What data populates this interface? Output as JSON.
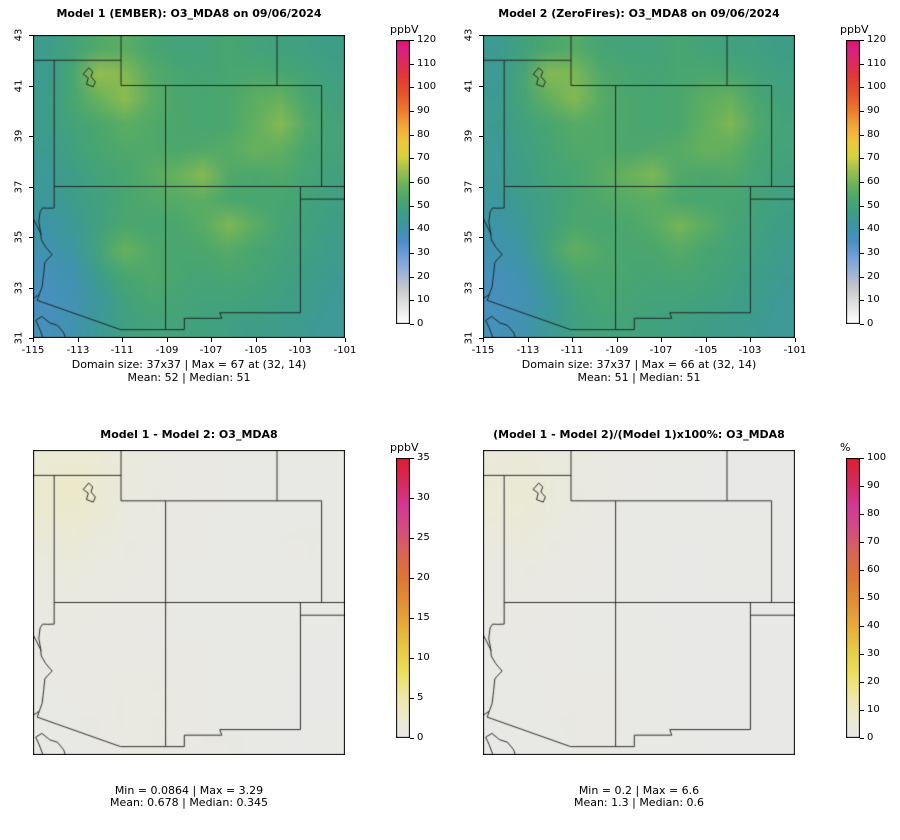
{
  "palettes": {
    "ozone": {
      "positions": [
        0,
        0.07,
        0.13,
        0.18,
        0.24,
        0.29,
        0.34,
        0.39,
        0.44,
        0.49,
        0.54,
        0.59,
        0.64,
        0.7,
        0.75,
        0.81,
        0.87,
        0.92,
        0.97,
        1.0
      ],
      "colors": [
        "#ffffff",
        "#e0e0e0",
        "#c2c6cc",
        "#9db4d8",
        "#6f9fd8",
        "#4b8fc4",
        "#3d95a8",
        "#3d9e88",
        "#4aa76e",
        "#6bb25a",
        "#9cbf4e",
        "#d6d23e",
        "#f0c83c",
        "#f2a636",
        "#ec7d2b",
        "#e5562b",
        "#e13a34",
        "#de2a5e",
        "#dc1f86",
        "#e0115f"
      ]
    },
    "warm": {
      "positions": [
        0,
        0.06,
        0.14,
        0.23,
        0.31,
        0.4,
        0.49,
        0.57,
        0.66,
        0.74,
        0.83,
        0.91,
        1.0
      ],
      "colors": [
        "#e8e8e8",
        "#ebead3",
        "#efe8ad",
        "#ece05e",
        "#e8cc45",
        "#e5ad3a",
        "#e08f31",
        "#dd7733",
        "#d96555",
        "#d44f80",
        "#d23a96",
        "#d62a62",
        "#dd1f30"
      ]
    }
  },
  "chart_data": [
    {
      "id": "model1",
      "type": "heatmap",
      "title": "Model 1 (EMBER): O3_MDA8 on 09/06/2024",
      "caption1": "Domain size: 37x37 | Max = 67 at (32, 14)",
      "caption2": "Mean: 52 | Median: 51",
      "stats": {
        "domain_size": "37x37",
        "max": 67,
        "max_at": "(32, 14)",
        "mean": 52,
        "median": 51
      },
      "lon_range": [
        -115,
        -101
      ],
      "lat_range": [
        31,
        43
      ],
      "xlabel_ticks": [
        -115,
        -113,
        -111,
        -109,
        -107,
        -105,
        -103,
        -101
      ],
      "ylabel_ticks": [
        31,
        33,
        35,
        37,
        39,
        41,
        43
      ],
      "show_axis_labels": true,
      "colorbar": {
        "label": "ppbV",
        "min": 0,
        "max": 120,
        "ticks": [
          0,
          10,
          20,
          30,
          40,
          50,
          60,
          70,
          80,
          90,
          100,
          110,
          120
        ],
        "palette": "ozone"
      },
      "lat_order": "north-to-south",
      "grid": [
        [
          46,
          50,
          54,
          56,
          52,
          50,
          50,
          52,
          50,
          49,
          48,
          47
        ],
        [
          45,
          52,
          64,
          62,
          55,
          52,
          51,
          52,
          53,
          52,
          50,
          48
        ],
        [
          46,
          52,
          58,
          63,
          56,
          53,
          52,
          53,
          56,
          58,
          52,
          49
        ],
        [
          46,
          50,
          53,
          56,
          54,
          53,
          52,
          53,
          57,
          62,
          54,
          50
        ],
        [
          45,
          49,
          52,
          54,
          54,
          53,
          54,
          55,
          58,
          57,
          52,
          50
        ],
        [
          44,
          47,
          50,
          52,
          55,
          58,
          62,
          54,
          53,
          54,
          51,
          49
        ],
        [
          43,
          46,
          49,
          52,
          54,
          55,
          56,
          53,
          52,
          52,
          50,
          48
        ],
        [
          41,
          44,
          49,
          53,
          52,
          53,
          55,
          61,
          56,
          51,
          49,
          47
        ],
        [
          39,
          42,
          50,
          58,
          54,
          52,
          53,
          55,
          52,
          50,
          48,
          46
        ],
        [
          37,
          39,
          46,
          52,
          54,
          52,
          51,
          52,
          51,
          49,
          47,
          45
        ],
        [
          36,
          38,
          43,
          49,
          52,
          51,
          50,
          50,
          49,
          48,
          46,
          44
        ],
        [
          37,
          39,
          44,
          48,
          50,
          50,
          49,
          48,
          47,
          46,
          45,
          44
        ]
      ]
    },
    {
      "id": "model2",
      "type": "heatmap",
      "title": "Model 2 (ZeroFires): O3_MDA8 on 09/06/2024",
      "caption1": "Domain size: 37x37 | Max = 66 at (32, 14)",
      "caption2": "Mean: 51 | Median: 51",
      "stats": {
        "domain_size": "37x37",
        "max": 66,
        "max_at": "(32, 14)",
        "mean": 51,
        "median": 51
      },
      "lon_range": [
        -115,
        -101
      ],
      "lat_range": [
        31,
        43
      ],
      "xlabel_ticks": [
        -115,
        -113,
        -111,
        -109,
        -107,
        -105,
        -103,
        -101
      ],
      "ylabel_ticks": [
        31,
        33,
        35,
        37,
        39,
        41,
        43
      ],
      "show_axis_labels": true,
      "colorbar": {
        "label": "ppbV",
        "min": 0,
        "max": 120,
        "ticks": [
          0,
          10,
          20,
          30,
          40,
          50,
          60,
          70,
          80,
          90,
          100,
          110,
          120
        ],
        "palette": "ozone"
      },
      "lat_order": "north-to-south",
      "grid": [
        [
          45,
          49,
          53,
          55,
          51,
          50,
          50,
          52,
          50,
          49,
          48,
          47
        ],
        [
          44,
          51,
          62,
          61,
          54,
          52,
          51,
          52,
          53,
          52,
          50,
          48
        ],
        [
          45,
          51,
          57,
          62,
          55,
          53,
          52,
          53,
          56,
          58,
          52,
          49
        ],
        [
          45,
          49,
          52,
          55,
          54,
          53,
          52,
          53,
          57,
          61,
          54,
          50
        ],
        [
          44,
          48,
          51,
          54,
          54,
          53,
          54,
          55,
          58,
          57,
          52,
          50
        ],
        [
          44,
          47,
          50,
          52,
          55,
          58,
          61,
          54,
          53,
          54,
          51,
          49
        ],
        [
          43,
          46,
          49,
          52,
          54,
          55,
          56,
          53,
          52,
          52,
          50,
          48
        ],
        [
          41,
          44,
          49,
          53,
          52,
          53,
          55,
          60,
          56,
          51,
          49,
          47
        ],
        [
          39,
          42,
          50,
          57,
          54,
          52,
          53,
          55,
          52,
          50,
          48,
          46
        ],
        [
          37,
          39,
          46,
          52,
          53,
          52,
          51,
          52,
          51,
          49,
          47,
          45
        ],
        [
          36,
          38,
          43,
          49,
          52,
          51,
          50,
          50,
          49,
          48,
          46,
          44
        ],
        [
          37,
          39,
          44,
          48,
          50,
          50,
          49,
          48,
          47,
          46,
          45,
          44
        ]
      ]
    },
    {
      "id": "difference",
      "type": "heatmap",
      "title": "Model 1 - Model 2: O3_MDA8",
      "caption1": "Min = 0.0864 | Max = 3.29",
      "caption2": "Mean: 0.678 | Median: 0.345",
      "stats": {
        "min": 0.0864,
        "max": 3.29,
        "mean": 0.678,
        "median": 0.345
      },
      "lon_range": [
        -115,
        -101
      ],
      "lat_range": [
        31,
        43
      ],
      "show_axis_labels": false,
      "colorbar": {
        "label": "ppbV",
        "min": 0,
        "max": 35,
        "ticks": [
          0,
          5,
          10,
          15,
          20,
          25,
          30,
          35
        ],
        "palette": "warm"
      },
      "lat_order": "north-to-south",
      "grid": [
        [
          2.0,
          2.2,
          1.8,
          1.2,
          0.8,
          0.6,
          0.5,
          0.4,
          0.3,
          0.3,
          0.3,
          0.3
        ],
        [
          2.5,
          3.0,
          2.0,
          1.2,
          0.8,
          0.6,
          0.5,
          0.4,
          0.3,
          0.3,
          0.3,
          0.3
        ],
        [
          2.2,
          2.5,
          1.8,
          1.0,
          0.7,
          0.5,
          0.4,
          0.4,
          0.3,
          0.3,
          0.3,
          0.3
        ],
        [
          1.5,
          1.8,
          1.2,
          0.8,
          0.6,
          0.5,
          0.4,
          0.3,
          0.3,
          0.4,
          0.5,
          0.3
        ],
        [
          1.0,
          1.2,
          0.9,
          0.7,
          0.5,
          0.4,
          0.4,
          0.3,
          0.3,
          0.4,
          0.4,
          0.3
        ],
        [
          0.8,
          0.9,
          0.7,
          0.6,
          0.5,
          0.4,
          0.3,
          0.3,
          0.3,
          0.3,
          0.3,
          0.3
        ],
        [
          0.6,
          0.7,
          0.6,
          0.5,
          0.4,
          0.4,
          0.3,
          0.3,
          0.3,
          0.3,
          0.3,
          0.2
        ],
        [
          0.5,
          0.6,
          0.5,
          0.5,
          0.4,
          0.4,
          0.4,
          0.3,
          0.3,
          0.3,
          0.2,
          0.2
        ],
        [
          0.4,
          0.5,
          0.5,
          0.6,
          0.6,
          0.5,
          0.4,
          0.3,
          0.3,
          0.2,
          0.2,
          0.2
        ],
        [
          0.4,
          0.4,
          0.5,
          0.7,
          0.8,
          0.6,
          0.4,
          0.3,
          0.3,
          0.2,
          0.2,
          0.2
        ],
        [
          0.3,
          0.4,
          0.5,
          0.8,
          0.9,
          0.6,
          0.4,
          0.3,
          0.2,
          0.2,
          0.2,
          0.2
        ],
        [
          0.3,
          0.3,
          0.4,
          0.6,
          0.7,
          0.5,
          0.4,
          0.6,
          0.3,
          0.2,
          0.2,
          0.3
        ]
      ]
    },
    {
      "id": "percent-difference",
      "type": "heatmap",
      "title": "(Model 1 - Model 2)/(Model 1)x100%: O3_MDA8",
      "caption1": "Min = 0.2 | Max = 6.6",
      "caption2": "Mean: 1.3 | Median: 0.6",
      "stats": {
        "min": 0.2,
        "max": 6.6,
        "mean": 1.3,
        "median": 0.6
      },
      "lon_range": [
        -115,
        -101
      ],
      "lat_range": [
        31,
        43
      ],
      "show_axis_labels": false,
      "colorbar": {
        "label": "%",
        "min": 0,
        "max": 100,
        "ticks": [
          0,
          10,
          20,
          30,
          40,
          50,
          60,
          70,
          80,
          90,
          100
        ],
        "palette": "warm"
      },
      "lat_order": "north-to-south",
      "grid": [
        [
          4.0,
          4.5,
          3.5,
          2.4,
          1.6,
          1.2,
          1.0,
          0.8,
          0.6,
          0.6,
          0.6,
          0.6
        ],
        [
          5.0,
          6.2,
          4.0,
          2.4,
          1.6,
          1.2,
          1.0,
          0.8,
          0.6,
          0.6,
          0.6,
          0.6
        ],
        [
          4.5,
          5.0,
          3.6,
          2.0,
          1.4,
          1.0,
          0.8,
          0.8,
          0.6,
          0.6,
          0.6,
          0.6
        ],
        [
          3.0,
          3.6,
          2.4,
          1.6,
          1.2,
          1.0,
          0.8,
          0.6,
          0.6,
          0.8,
          1.0,
          0.6
        ],
        [
          2.0,
          2.4,
          1.8,
          1.4,
          1.0,
          0.8,
          0.8,
          0.6,
          0.6,
          0.8,
          0.8,
          0.6
        ],
        [
          1.6,
          1.8,
          1.4,
          1.2,
          1.0,
          0.8,
          0.6,
          0.6,
          0.6,
          0.6,
          0.6,
          0.6
        ],
        [
          1.2,
          1.4,
          1.2,
          1.0,
          0.8,
          0.8,
          0.6,
          0.6,
          0.6,
          0.6,
          0.6,
          0.4
        ],
        [
          1.0,
          1.2,
          1.0,
          1.0,
          0.8,
          0.8,
          0.8,
          0.6,
          0.6,
          0.6,
          0.4,
          0.4
        ],
        [
          0.8,
          1.0,
          1.0,
          1.2,
          1.2,
          1.0,
          0.8,
          0.6,
          0.6,
          0.4,
          0.4,
          0.4
        ],
        [
          0.8,
          0.8,
          1.0,
          1.4,
          1.6,
          1.2,
          0.8,
          0.6,
          0.6,
          0.4,
          0.4,
          0.4
        ],
        [
          0.6,
          0.8,
          1.0,
          1.6,
          1.8,
          1.2,
          0.8,
          0.6,
          0.4,
          0.4,
          0.4,
          0.4
        ],
        [
          0.6,
          0.6,
          0.8,
          1.2,
          1.4,
          1.0,
          0.8,
          1.2,
          0.6,
          0.4,
          0.4,
          0.6
        ]
      ]
    }
  ]
}
